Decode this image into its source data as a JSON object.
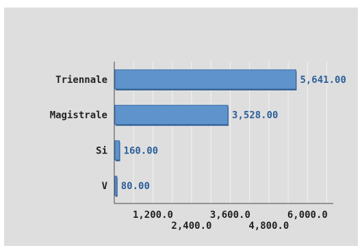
{
  "chart_data": {
    "type": "bar",
    "orientation": "horizontal",
    "categories": [
      "Triennale",
      "Magistrale",
      "Si",
      "V"
    ],
    "values": [
      5641,
      3528,
      160,
      80
    ],
    "value_labels": [
      "5,641.00",
      "3,528.00",
      "160.00",
      "80.00"
    ],
    "xlim": [
      0,
      6800
    ],
    "x_ticks": [
      1200,
      2400,
      3600,
      4800,
      6000
    ],
    "x_tick_labels": [
      "1,200.0",
      "2,400.0",
      "3,600.0",
      "4,800.0",
      "6,000.0"
    ],
    "grid": true,
    "bar_color": "#5f93cc",
    "bar_edge_color": "#3a6ea8",
    "label_color": "#2c5f9a",
    "background": "#dedede"
  }
}
